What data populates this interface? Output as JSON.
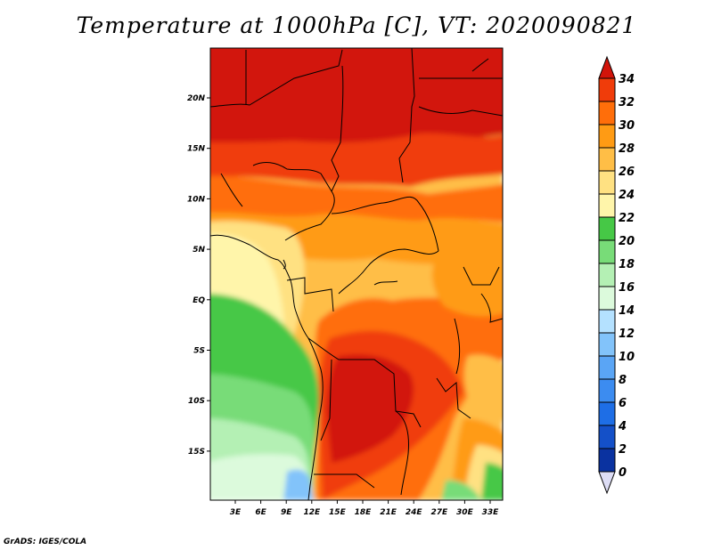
{
  "title": "Temperature at 1000hPa [C], VT: 2020090821",
  "credit": "GrADS: IGES/COLA",
  "map": {
    "lat_labels": [
      "20N",
      "15N",
      "10N",
      "5N",
      "EQ",
      "5S",
      "10S",
      "15S"
    ],
    "lon_labels": [
      "3E",
      "6E",
      "9E",
      "12E",
      "15E",
      "18E",
      "21E",
      "24E",
      "27E",
      "30E",
      "33E"
    ]
  },
  "colorbar": {
    "labels": [
      "0",
      "2",
      "4",
      "6",
      "8",
      "10",
      "12",
      "14",
      "16",
      "18",
      "20",
      "22",
      "24",
      "26",
      "28",
      "30",
      "32",
      "34"
    ],
    "colors": [
      "#0a0a78",
      "#0a32a0",
      "#1450c8",
      "#1e6ee6",
      "#3c8cf0",
      "#5aa5f5",
      "#82c3fa",
      "#b4e1ff",
      "#dcfadc",
      "#b4f0b4",
      "#78dc78",
      "#46c846",
      "#fff5aa",
      "#ffe182",
      "#ffbe46",
      "#ff9b14",
      "#ff6e0a",
      "#f03c0a",
      "#d2140a"
    ]
  }
}
